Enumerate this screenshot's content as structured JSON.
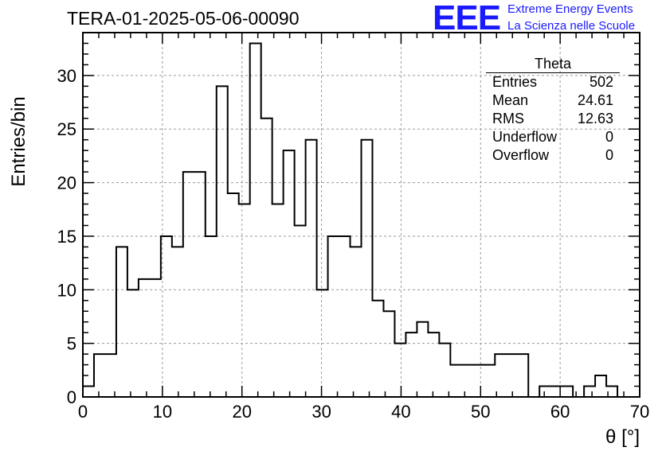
{
  "header": {
    "run_title": "TERA-01-2025-05-06-00090",
    "logo_text": "EEE",
    "logo_line1": "Extreme Energy Events",
    "logo_line2": "La Scienza nelle Scuole",
    "logo_color": "#1a1aff"
  },
  "stats_box": {
    "title": "Theta",
    "rows": [
      {
        "label": "Entries",
        "value": "502"
      },
      {
        "label": "Mean",
        "value": "24.61"
      },
      {
        "label": "RMS",
        "value": "12.63"
      },
      {
        "label": "Underflow",
        "value": "0"
      },
      {
        "label": "Overflow",
        "value": "0"
      }
    ]
  },
  "chart_data": {
    "type": "bar",
    "histogram": true,
    "xlabel": "θ [°]",
    "ylabel": "Entries/bin",
    "xlim": [
      0,
      70
    ],
    "ylim": [
      0,
      34
    ],
    "bin_width": 1.4,
    "xticks": [
      0,
      10,
      20,
      30,
      40,
      50,
      60,
      70
    ],
    "yticks": [
      0,
      5,
      10,
      15,
      20,
      25,
      30
    ],
    "grid": true,
    "grid_style": "dashed",
    "line_color": "#000000",
    "bin_edges": [
      0,
      1.4,
      2.8,
      4.2,
      5.6,
      7.0,
      8.4,
      9.8,
      11.2,
      12.6,
      14.0,
      15.4,
      16.8,
      18.2,
      19.6,
      21.0,
      22.4,
      23.8,
      25.2,
      26.6,
      28.0,
      29.4,
      30.8,
      32.2,
      33.6,
      35.0,
      36.4,
      37.8,
      39.2,
      40.6,
      42.0,
      43.4,
      44.8,
      46.2,
      47.6,
      49.0,
      50.4,
      51.8,
      53.2,
      54.6,
      56.0,
      57.4,
      58.8,
      60.2,
      61.6,
      63.0,
      64.4,
      65.8,
      67.2,
      68.6,
      70.0
    ],
    "values": [
      1,
      4,
      4,
      14,
      10,
      11,
      11,
      15,
      14,
      21,
      21,
      15,
      29,
      19,
      18,
      33,
      26,
      18,
      23,
      16,
      24,
      10,
      15,
      15,
      14,
      24,
      9,
      8,
      5,
      6,
      7,
      6,
      5,
      3,
      3,
      3,
      3,
      4,
      4,
      4,
      0,
      1,
      1,
      1,
      0,
      1,
      2,
      1,
      0,
      0
    ]
  }
}
